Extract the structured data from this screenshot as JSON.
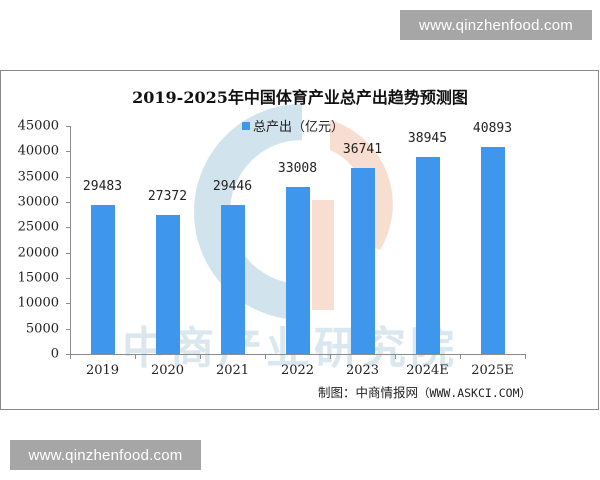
{
  "watermarks": {
    "top": "www.qinzhenfood.com",
    "bottom": "www.qinzhenfood.com",
    "background_text": "中商产业研究院"
  },
  "colors": {
    "bar": "#3e97ec",
    "logo_blue": "#c9dfeb",
    "logo_peach": "#f6d4c6",
    "axis": "#8c8c8c"
  },
  "chart": {
    "title": "2019-2025年中国体育产业总产出趋势预测图",
    "legend_label": "总产出（亿元）",
    "source_prefix": "制图：中商情报网",
    "source_url": "（WWW.ASKCI.COM）"
  },
  "chart_data": {
    "type": "bar",
    "title": "2019-2025年中国体育产业总产出趋势预测图",
    "xlabel": "",
    "ylabel": "",
    "categories": [
      "2019",
      "2020",
      "2021",
      "2022",
      "2023",
      "2024E",
      "2025E"
    ],
    "series": [
      {
        "name": "总产出（亿元）",
        "values": [
          29483,
          27372,
          29446,
          33008,
          36741,
          38945,
          40893
        ]
      }
    ],
    "ylim": [
      0,
      45000
    ],
    "yticks": [
      0,
      5000,
      10000,
      15000,
      20000,
      25000,
      30000,
      35000,
      40000,
      45000
    ],
    "grid": false,
    "legend_position": "top",
    "data_labels": true,
    "source": "制图：中商情报网（WWW.ASKCI.COM）"
  }
}
